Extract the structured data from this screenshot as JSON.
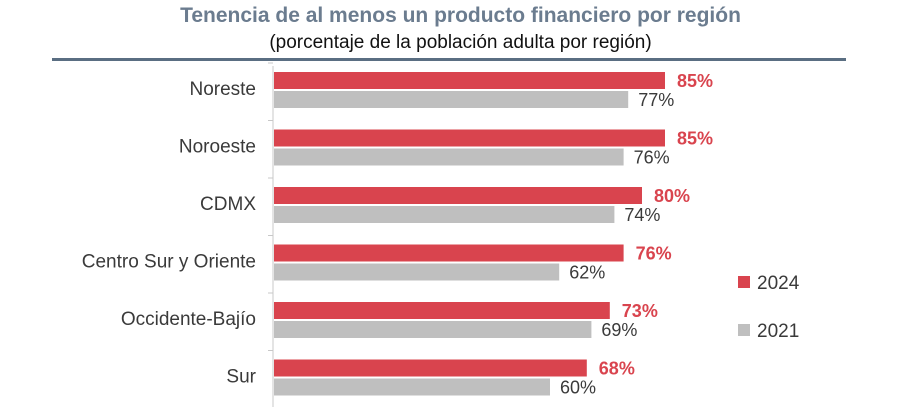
{
  "chart_data": {
    "type": "bar",
    "orientation": "horizontal",
    "title": "Tenencia de al menos un producto financiero por región",
    "subtitle": "(porcentaje de la población adulta por región)",
    "categories": [
      "Noreste",
      "Noroeste",
      "CDMX",
      "Centro Sur y Oriente",
      "Occidente-Bajío",
      "Sur"
    ],
    "series": [
      {
        "name": "2024",
        "color": "#d9444e",
        "values": [
          85,
          85,
          80,
          76,
          73,
          68
        ],
        "labels": [
          "85%",
          "85%",
          "80%",
          "76%",
          "73%",
          "68%"
        ]
      },
      {
        "name": "2021",
        "color": "#bfbfbf",
        "values": [
          77,
          76,
          74,
          62,
          69,
          60
        ],
        "labels": [
          "77%",
          "76%",
          "74%",
          "62%",
          "69%",
          "60%"
        ]
      }
    ],
    "xlim": [
      0,
      100
    ],
    "grid": false,
    "legend_position": "right"
  }
}
